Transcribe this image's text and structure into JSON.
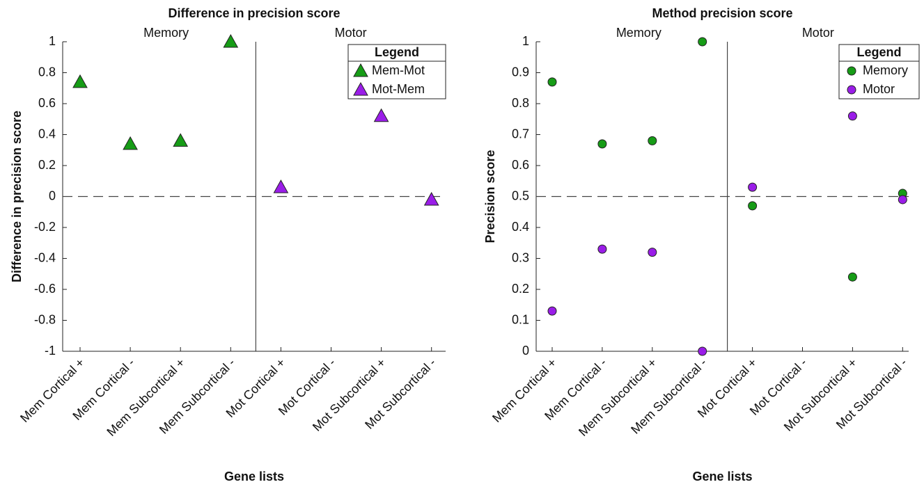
{
  "chart_data": [
    {
      "type": "scatter",
      "title": "Difference in precision score",
      "xlabel": "Gene lists",
      "ylabel": "Difference in precision score",
      "annotations": [
        "Memory",
        "Motor"
      ],
      "categories": [
        "Mem Cortical +",
        "Mem Cortical -",
        "Mem Subcortical +",
        "Mem Subcortical -",
        "Mot Cortical +",
        "Mot Cortical -",
        "Mot Subcortical +",
        "Mot Subcortical -"
      ],
      "series": [
        {
          "name": "Mem-Mot",
          "color": "#169c16",
          "marker": "triangle",
          "values": [
            0.74,
            0.34,
            0.36,
            1.0,
            null,
            null,
            null,
            null
          ]
        },
        {
          "name": "Mot-Mem",
          "color": "#9a1de8",
          "marker": "triangle",
          "values": [
            null,
            null,
            null,
            null,
            0.06,
            null,
            0.52,
            -0.02
          ]
        }
      ],
      "ylim": [
        -1,
        1
      ],
      "yticks": [
        -1,
        -0.8,
        -0.6,
        -0.4,
        -0.2,
        0,
        0.2,
        0.4,
        0.6,
        0.8,
        1
      ],
      "hline": 0,
      "legend_title": "Legend",
      "legend": "upper right"
    },
    {
      "type": "scatter",
      "title": "Method precision score",
      "xlabel": "Gene lists",
      "ylabel": "Precision score",
      "annotations": [
        "Memory",
        "Motor"
      ],
      "categories": [
        "Mem Cortical +",
        "Mem Cortical -",
        "Mem Subcortical +",
        "Mem Subcortical -",
        "Mot Cortical +",
        "Mot Cortical -",
        "Mot Subcortical +",
        "Mot Subcortical -"
      ],
      "series": [
        {
          "name": "Memory",
          "color": "#169c16",
          "marker": "circle",
          "values": [
            0.87,
            0.67,
            0.68,
            1.0,
            0.47,
            null,
            0.24,
            0.51
          ]
        },
        {
          "name": "Motor",
          "color": "#9a1de8",
          "marker": "circle",
          "values": [
            0.13,
            0.33,
            0.32,
            0,
            0.53,
            null,
            0.76,
            0.49
          ]
        }
      ],
      "ylim": [
        0,
        1
      ],
      "yticks": [
        0,
        0.1,
        0.2,
        0.3,
        0.4,
        0.5,
        0.6,
        0.7,
        0.8,
        0.9,
        1
      ],
      "hline": 0.5,
      "legend_title": "Legend",
      "legend": "upper right"
    }
  ]
}
